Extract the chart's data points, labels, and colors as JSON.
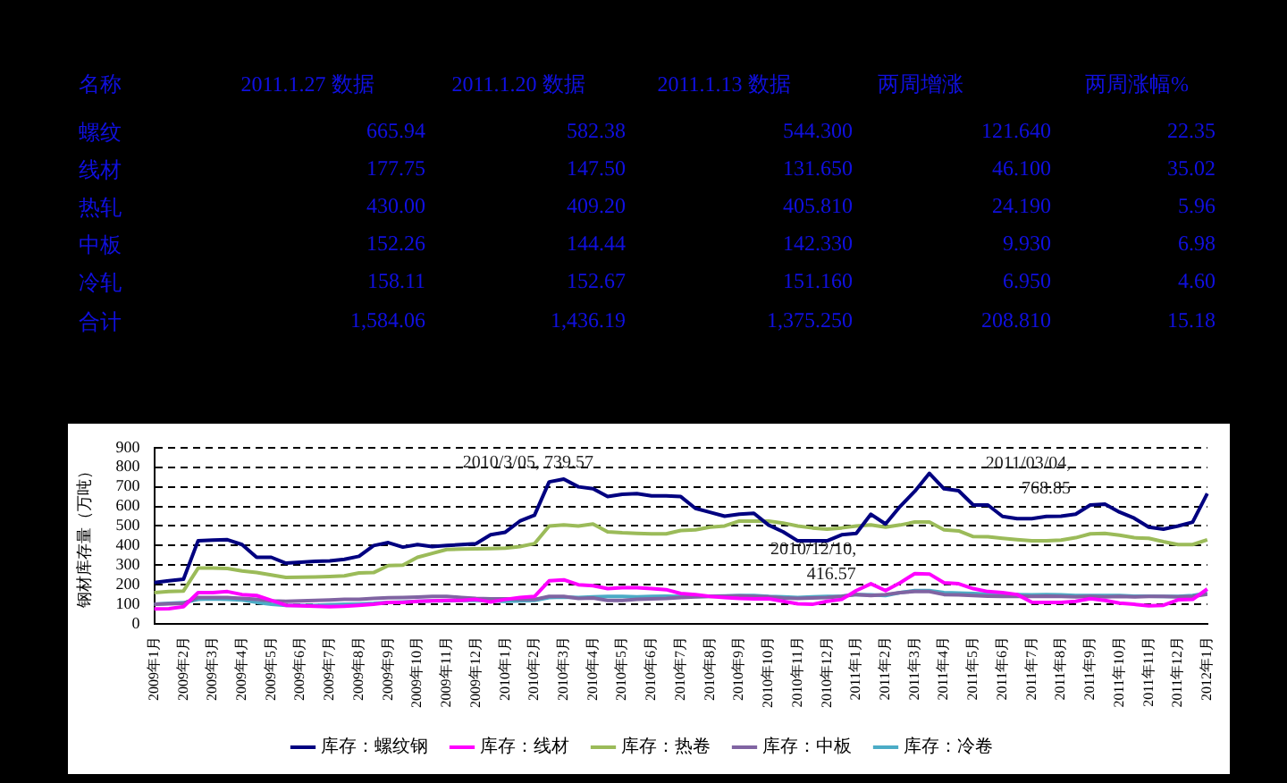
{
  "chart_data": [
    {
      "type": "other",
      "ylabel": "名称",
      "categories": [
        "2011.1.27 数据",
        "2011.1.20 数据",
        "2011.1.13 数据",
        "两周增涨",
        "两周涨幅%"
      ],
      "y_categories": [
        "螺纹",
        "线材",
        "热轧",
        "中板",
        "冷轧",
        "合计"
      ],
      "cell_labels": [
        [
          "665.94",
          "582.38",
          "544.300",
          "121.640",
          "22.35"
        ],
        [
          "177.75",
          "147.50",
          "131.650",
          "46.100",
          "35.02"
        ],
        [
          "430.00",
          "409.20",
          "405.810",
          "24.190",
          "5.96"
        ],
        [
          "152.26",
          "144.44",
          "142.330",
          "9.930",
          "6.98"
        ],
        [
          "158.11",
          "152.67",
          "151.160",
          "6.950",
          "4.60"
        ],
        [
          "1,584.06",
          "1,436.19",
          "1,375.250",
          "208.810",
          "15.18"
        ]
      ]
    },
    {
      "type": "line",
      "ylabel": "钢材库存量（万吨）",
      "ylim": [
        0,
        900
      ],
      "yticks": [
        0,
        100,
        200,
        300,
        400,
        500,
        600,
        700,
        800,
        900
      ],
      "grid": "y",
      "legend": "bottom",
      "marker": "none",
      "line_style": "solid",
      "categories": [
        "2009年1月",
        null,
        "2009年2月",
        null,
        "2009年3月",
        null,
        "2009年4月",
        null,
        "2009年5月",
        null,
        "2009年6月",
        null,
        "2009年7月",
        null,
        "2009年8月",
        null,
        "2009年9月",
        null,
        "2009年10月",
        null,
        "2009年11月",
        null,
        "2009年12月",
        null,
        "2010年1月",
        null,
        "2010年2月",
        null,
        "2010年3月",
        null,
        "2010年4月",
        null,
        "2010年5月",
        null,
        "2010年6月",
        null,
        "2010年7月",
        null,
        "2010年8月",
        null,
        "2010年9月",
        null,
        "2010年10月",
        null,
        "2010年11月",
        null,
        "2010年12月",
        null,
        "2011年1月",
        null,
        "2011年2月",
        null,
        "2011年3月",
        null,
        "2011年4月",
        null,
        "2011年5月",
        null,
        "2011年6月",
        null,
        "2011年7月",
        null,
        "2011年8月",
        null,
        "2011年9月",
        null,
        "2011年10月",
        null,
        "2011年11月",
        null,
        "2011年12月",
        null,
        "2012年1月"
      ],
      "series": [
        {
          "name": "库存：螺纹钢",
          "color": "#000080",
          "values": [
            211,
            220,
            228,
            425,
            428,
            430,
            405,
            340,
            340,
            310,
            315,
            320,
            322,
            330,
            345,
            400,
            415,
            392,
            405,
            395,
            400,
            405,
            410,
            455,
            468,
            525,
            555,
            725,
            739,
            700,
            690,
            650,
            662,
            665,
            654,
            654,
            650,
            590,
            570,
            550,
            560,
            565,
            505,
            470,
            424,
            424,
            424,
            455,
            462,
            560,
            510,
            600,
            677,
            769,
            690,
            680,
            607,
            607,
            549,
            537,
            537,
            549,
            550,
            560,
            607,
            612,
            571,
            540,
            494,
            484,
            500,
            520,
            666
          ]
        },
        {
          "name": "库存：线材",
          "color": "#ff00ff",
          "values": [
            76,
            78,
            88,
            160,
            160,
            165,
            150,
            145,
            120,
            95,
            92,
            90,
            88,
            90,
            95,
            100,
            110,
            110,
            115,
            118,
            120,
            120,
            125,
            112,
            125,
            135,
            140,
            220,
            225,
            200,
            195,
            180,
            185,
            185,
            180,
            175,
            155,
            150,
            140,
            135,
            130,
            128,
            129,
            115,
            103,
            100,
            115,
            125,
            170,
            205,
            170,
            210,
            257,
            255,
            210,
            205,
            180,
            165,
            160,
            150,
            111,
            110,
            110,
            115,
            129,
            120,
            106,
            100,
            92,
            95,
            123,
            125,
            178
          ]
        },
        {
          "name": "库存：热卷",
          "color": "#9bbb59",
          "values": [
            160,
            165,
            168,
            285,
            285,
            283,
            270,
            262,
            250,
            237,
            238,
            240,
            242,
            245,
            260,
            262,
            298,
            300,
            340,
            360,
            380,
            382,
            383,
            385,
            387,
            395,
            410,
            500,
            505,
            500,
            510,
            470,
            465,
            462,
            460,
            460,
            477,
            480,
            494,
            500,
            525,
            525,
            525,
            515,
            500,
            490,
            484,
            490,
            500,
            505,
            494,
            505,
            520,
            520,
            480,
            475,
            446,
            445,
            437,
            430,
            424,
            424,
            428,
            440,
            460,
            462,
            453,
            440,
            437,
            420,
            405,
            405,
            430
          ]
        },
        {
          "name": "库存：中板",
          "color": "#8064a2",
          "values": [
            100,
            103,
            105,
            135,
            135,
            135,
            130,
            125,
            118,
            115,
            118,
            120,
            122,
            125,
            125,
            130,
            133,
            135,
            137,
            140,
            140,
            135,
            130,
            128,
            128,
            125,
            125,
            140,
            140,
            130,
            132,
            120,
            120,
            125,
            128,
            130,
            135,
            138,
            140,
            142,
            143,
            140,
            138,
            132,
            130,
            132,
            135,
            140,
            150,
            145,
            150,
            160,
            165,
            165,
            150,
            148,
            145,
            142,
            140,
            142,
            140,
            142,
            140,
            138,
            140,
            138,
            140,
            138,
            140,
            140,
            138,
            140,
            152
          ]
        },
        {
          "name": "库存：冷卷",
          "color": "#4bacc6",
          "values": [
            100,
            105,
            108,
            125,
            128,
            125,
            122,
            110,
            100,
            95,
            95,
            95,
            98,
            100,
            102,
            105,
            110,
            112,
            115,
            118,
            118,
            120,
            120,
            118,
            115,
            118,
            120,
            135,
            137,
            135,
            138,
            140,
            140,
            138,
            140,
            142,
            140,
            140,
            142,
            143,
            145,
            145,
            140,
            138,
            135,
            138,
            140,
            142,
            150,
            148,
            145,
            160,
            170,
            170,
            160,
            158,
            155,
            152,
            152,
            150,
            148,
            150,
            148,
            145,
            145,
            145,
            145,
            142,
            142,
            140,
            140,
            145,
            158
          ]
        }
      ],
      "annotations": [
        "2010/3/05, 739.57",
        "2010/12/10,\n416.57",
        "2011/03/04,\n768.85"
      ]
    }
  ]
}
